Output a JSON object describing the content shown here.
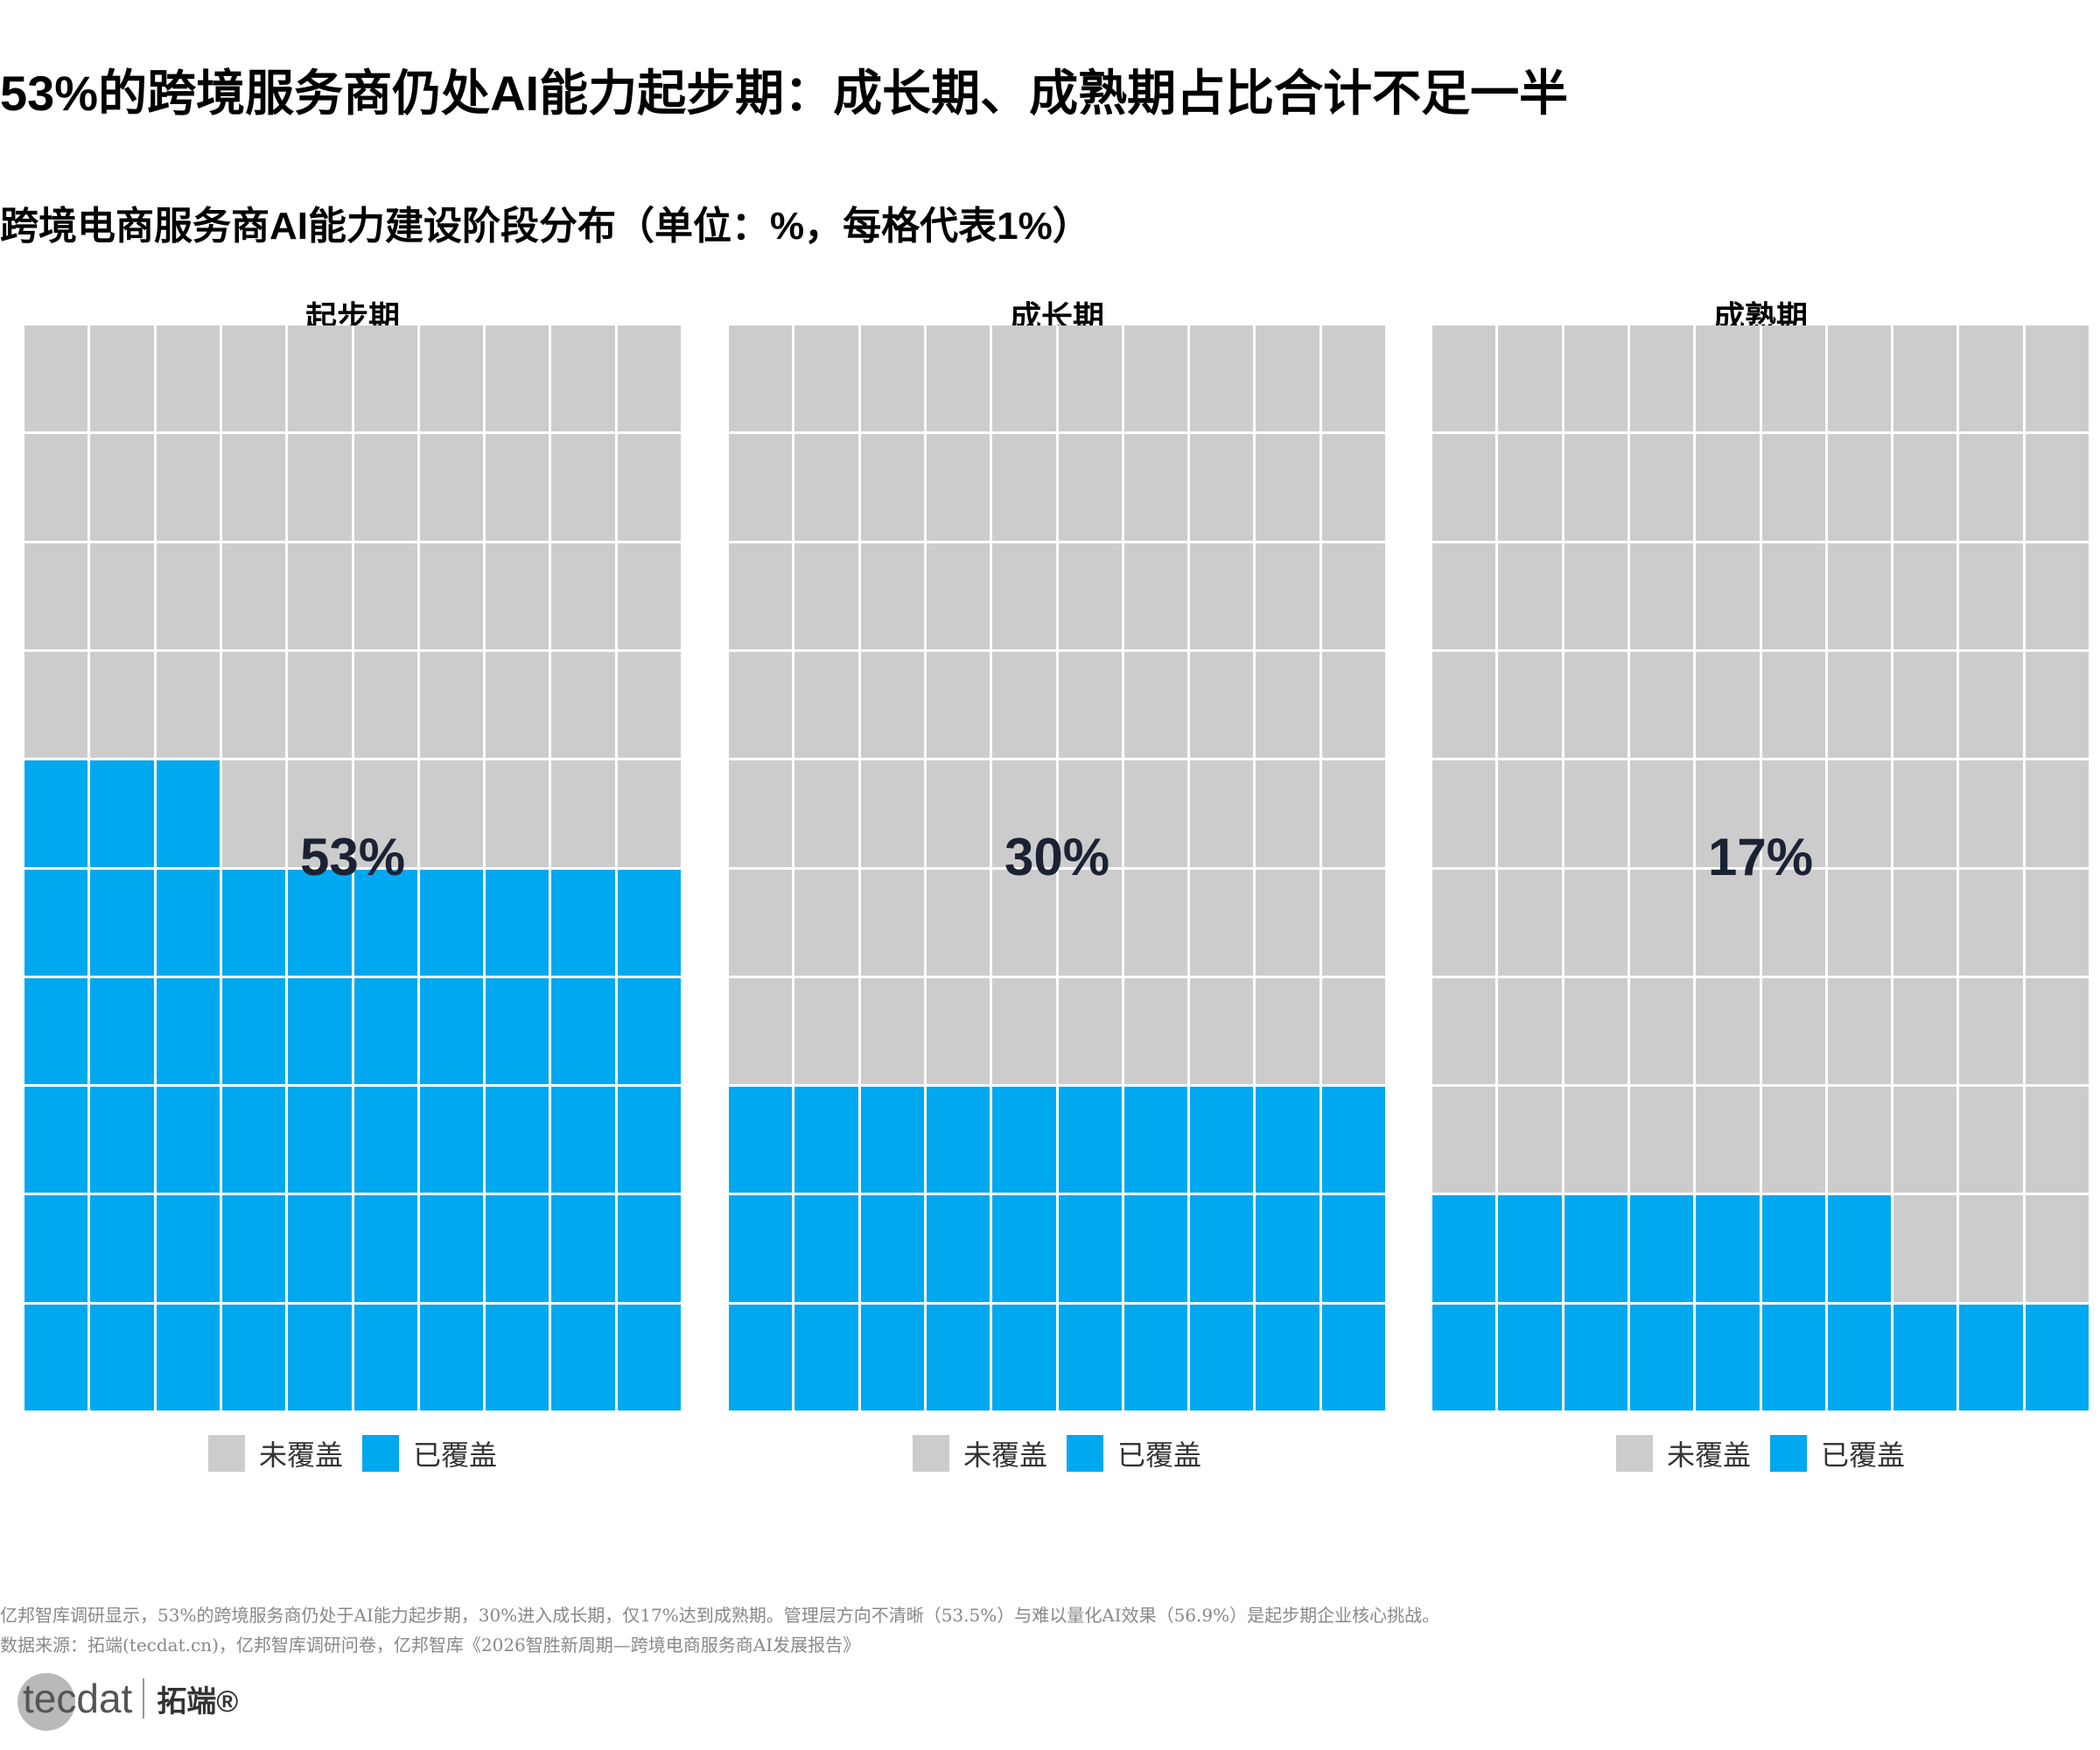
{
  "title": "53%的跨境服务商仍处AI能力起步期：成长期、成熟期占比合计不足一半",
  "subtitle": "跨境电商服务商AI能力建设阶段分布（单位：%，每格代表1%）",
  "colors": {
    "uncovered": "#cccccc",
    "covered": "#00a8f0",
    "percent_text": "#1a2233"
  },
  "chart_data": [
    {
      "type": "waffle",
      "title": "起步期",
      "value": 53,
      "value_label": "53%",
      "grid": [
        10,
        10
      ],
      "legend": [
        "未覆盖",
        "已覆盖"
      ]
    },
    {
      "type": "waffle",
      "title": "成长期",
      "value": 30,
      "value_label": "30%",
      "grid": [
        10,
        10
      ],
      "legend": [
        "未覆盖",
        "已覆盖"
      ]
    },
    {
      "type": "waffle",
      "title": "成熟期",
      "value": 17,
      "value_label": "17%",
      "grid": [
        10,
        10
      ],
      "legend": [
        "未覆盖",
        "已覆盖"
      ]
    }
  ],
  "footnote": {
    "line1": "亿邦智库调研显示，53%的跨境服务商仍处于AI能力起步期，30%进入成长期，仅17%达到成熟期。管理层方向不清晰（53.5%）与难以量化AI效果（56.9%）是起步期企业核心挑战。",
    "line2": "数据来源：拓端(tecdat.cn)，亿邦智库调研问卷，亿邦智库《2026智胜新周期—跨境电商服务商AI发展报告》"
  },
  "logo": {
    "mark": "tecdat",
    "cn": "拓端®"
  }
}
